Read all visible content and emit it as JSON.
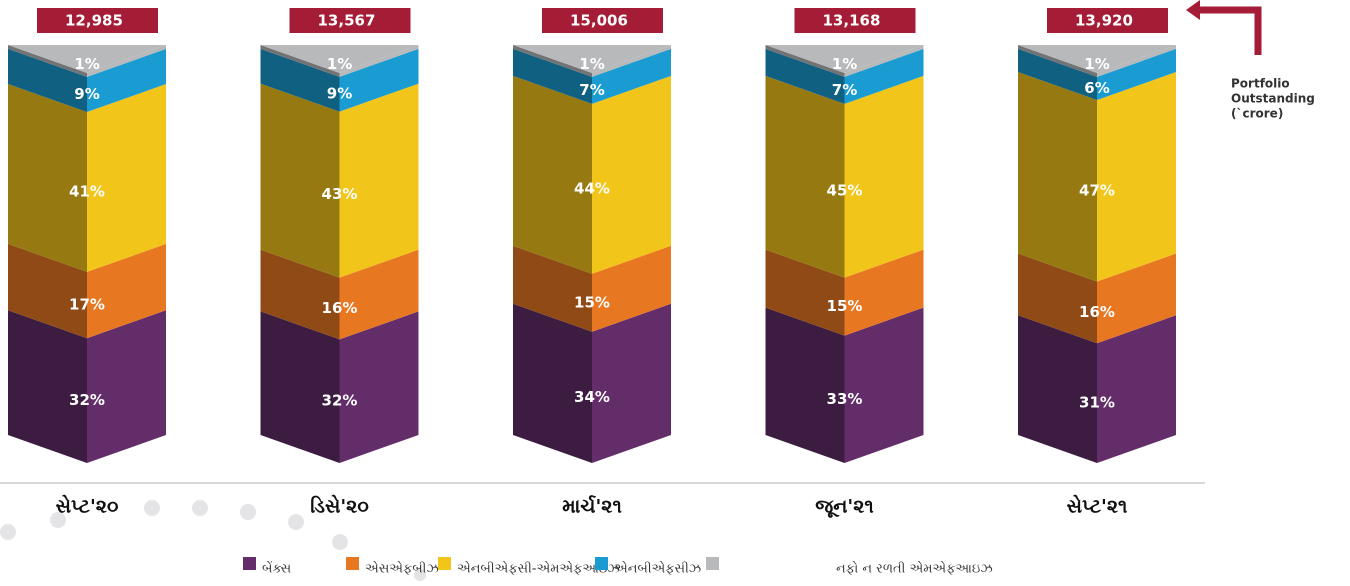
{
  "chart_data": {
    "type": "bar",
    "stacked": true,
    "categories": [
      "સેપ્ટ'૨૦",
      "ડિસે'૨૦",
      "માર્ચ'૨૧",
      "જૂન'૨૧",
      "સેપ્ટ'૨૧"
    ],
    "series": [
      {
        "name": "બેંક્સ",
        "color": "#632d6a",
        "values": [
          32,
          32,
          34,
          33,
          31
        ],
        "value_labels": [
          "32%",
          "32%",
          "34%",
          "33%",
          "31%"
        ]
      },
      {
        "name": "એસએફબીઝ",
        "color": "#e87722",
        "values": [
          17,
          16,
          15,
          15,
          16
        ],
        "value_labels": [
          "17%",
          "16%",
          "15%",
          "15%",
          "16%"
        ]
      },
      {
        "name": "એનબીએફસી-એમએફઆઇઝ",
        "color": "#f2c51b",
        "values": [
          41,
          43,
          44,
          45,
          47
        ],
        "value_labels": [
          "41%",
          "43%",
          "44%",
          "45%",
          "47%"
        ]
      },
      {
        "name": "એનબીએફસીઝ",
        "color": "#1a9bd1",
        "values": [
          9,
          9,
          7,
          7,
          6
        ],
        "value_labels": [
          "9%",
          "9%",
          "7%",
          "7%",
          "6%"
        ]
      },
      {
        "name": "નફો ન રળતી એમએફઆઇઝ",
        "color": "#b8b9bb",
        "values": [
          1,
          1,
          1,
          1,
          1
        ],
        "value_labels": [
          "1%",
          "1%",
          "1%",
          "1%",
          "1%"
        ]
      }
    ],
    "totals": {
      "values": [
        12985,
        13567,
        15006,
        13168,
        13920
      ],
      "value_labels": [
        "12,985",
        "13,567",
        "15,006",
        "13,168",
        "13,920"
      ],
      "color": "#a51c36"
    },
    "annotation": [
      "Portfolio",
      "Outstanding",
      "(`crore)"
    ]
  }
}
